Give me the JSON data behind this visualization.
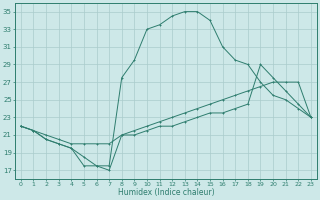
{
  "xlabel": "Humidex (Indice chaleur)",
  "ylabel": "",
  "xlim": [
    -0.5,
    23.5
  ],
  "ylim": [
    16,
    36
  ],
  "yticks": [
    17,
    19,
    21,
    23,
    25,
    27,
    29,
    31,
    33,
    35
  ],
  "xticks": [
    0,
    1,
    2,
    3,
    4,
    5,
    6,
    7,
    8,
    9,
    10,
    11,
    12,
    13,
    14,
    15,
    16,
    17,
    18,
    19,
    20,
    21,
    22,
    23
  ],
  "bg_color": "#cde8e8",
  "line_color": "#2e7d6e",
  "grid_color": "#aacccc",
  "line_top_x": [
    0,
    1,
    2,
    3,
    4,
    5,
    6,
    7,
    8,
    9,
    10,
    11,
    12,
    13,
    14,
    15,
    16,
    17,
    18,
    19,
    20,
    21,
    22,
    23
  ],
  "line_top_y": [
    22,
    21.5,
    20.5,
    20,
    19.5,
    18.5,
    17.5,
    17.5,
    27.5,
    29.5,
    33,
    33.5,
    34.5,
    35,
    35,
    34,
    31,
    29.5,
    29,
    27,
    25.5,
    25,
    24,
    23
  ],
  "line_mid_x": [
    0,
    1,
    2,
    3,
    4,
    5,
    6,
    7,
    8,
    9,
    10,
    11,
    12,
    13,
    14,
    15,
    16,
    17,
    18,
    19,
    20,
    21,
    22,
    23
  ],
  "line_mid_y": [
    22,
    21.5,
    21,
    20.5,
    20,
    20,
    20,
    20,
    21,
    21.5,
    22,
    22.5,
    23,
    23.5,
    24,
    24.5,
    25,
    25.5,
    26,
    26.5,
    27,
    27,
    27,
    23
  ],
  "line_bot_x": [
    0,
    1,
    2,
    3,
    4,
    5,
    6,
    7,
    8,
    9,
    10,
    11,
    12,
    13,
    14,
    15,
    16,
    17,
    18,
    19,
    20,
    21,
    22,
    23
  ],
  "line_bot_y": [
    22,
    21.5,
    20.5,
    20,
    19.5,
    17.5,
    17.5,
    17,
    21,
    21,
    21.5,
    22,
    22,
    22.5,
    23,
    23.5,
    23.5,
    24,
    24.5,
    29,
    27.5,
    26,
    24.5,
    23
  ]
}
